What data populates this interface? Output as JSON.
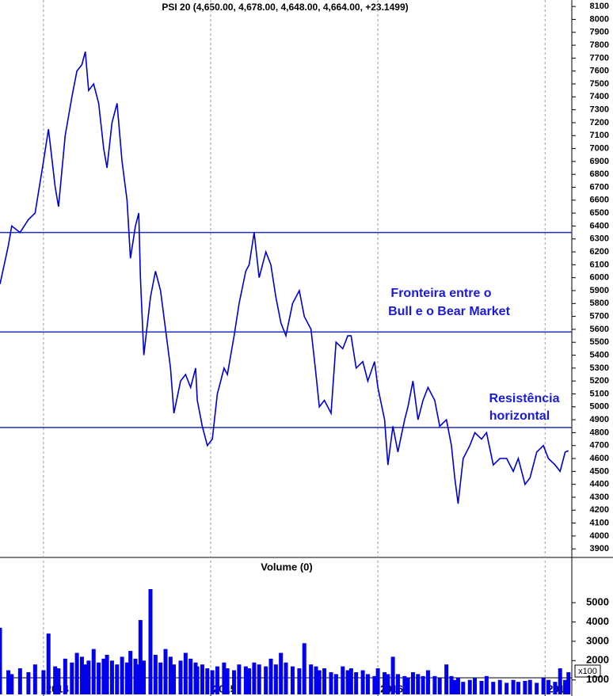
{
  "chart_data": [
    {
      "type": "line",
      "title": "PSI 20 (4,650.00, 4,678.00, 4,648.00, 4,664.00, +23.1499)",
      "x": [
        2013.74,
        2013.79,
        2013.81,
        2013.86,
        2013.91,
        2013.95,
        2014.0,
        2014.03,
        2014.07,
        2014.09,
        2014.13,
        2014.17,
        2014.2,
        2014.23,
        2014.25,
        2014.27,
        2014.3,
        2014.33,
        2014.36,
        2014.38,
        2014.41,
        2014.44,
        2014.47,
        2014.5,
        2014.52,
        2014.55,
        2014.57,
        2014.58,
        2014.6,
        2014.64,
        2014.67,
        2014.7,
        2014.73,
        2014.76,
        2014.78,
        2014.82,
        2014.85,
        2014.88,
        2014.91,
        2014.92,
        2014.95,
        2014.98,
        2015.01,
        2015.04,
        2015.08,
        2015.1,
        2015.14,
        2015.17,
        2015.21,
        2015.23,
        2015.26,
        2015.29,
        2015.33,
        2015.36,
        2015.39,
        2015.42,
        2015.45,
        2015.49,
        2015.53,
        2015.56,
        2015.6,
        2015.63,
        2015.65,
        2015.68,
        2015.72,
        2015.75,
        2015.79,
        2015.82,
        2015.84,
        2015.87,
        2015.91,
        2015.94,
        2015.98,
        2016.0,
        2016.04,
        2016.06,
        2016.09,
        2016.12,
        2016.16,
        2016.18,
        2016.21,
        2016.24,
        2016.27,
        2016.3,
        2016.34,
        2016.37,
        2016.41,
        2016.44,
        2016.46,
        2016.48,
        2016.51,
        2016.55,
        2016.58,
        2016.62,
        2016.65,
        2016.69,
        2016.73,
        2016.77,
        2016.81,
        2016.84,
        2016.88,
        2016.91,
        2016.95,
        2016.99,
        2017.02,
        2017.06,
        2017.09,
        2017.12,
        2017.14
      ],
      "values": [
        5950,
        6250,
        6400,
        6350,
        6450,
        6500,
        6900,
        7150,
        6700,
        6550,
        7100,
        7400,
        7600,
        7650,
        7750,
        7450,
        7500,
        7350,
        7000,
        6850,
        7200,
        7350,
        6900,
        6600,
        6150,
        6400,
        6500,
        6000,
        5400,
        5850,
        6050,
        5900,
        5600,
        5300,
        4950,
        5200,
        5250,
        5150,
        5300,
        5050,
        4850,
        4700,
        4750,
        5100,
        5300,
        5250,
        5550,
        5800,
        6050,
        6100,
        6350,
        6000,
        6200,
        6100,
        5850,
        5650,
        5550,
        5800,
        5900,
        5700,
        5600,
        5250,
        5000,
        5050,
        4950,
        5500,
        5450,
        5550,
        5550,
        5300,
        5350,
        5200,
        5350,
        5150,
        4900,
        4550,
        4850,
        4650,
        4900,
        5000,
        5200,
        4900,
        5050,
        5150,
        5050,
        4850,
        4900,
        4700,
        4450,
        4250,
        4600,
        4700,
        4800,
        4750,
        4800,
        4550,
        4600,
        4600,
        4500,
        4600,
        4400,
        4450,
        4650,
        4700,
        4600,
        4550,
        4500,
        4650,
        4660
      ],
      "color": "#0000cc",
      "xlim": [
        2013.74,
        2017.16
      ],
      "xticks": [
        2014,
        2015,
        2016,
        2017
      ],
      "ylim": [
        3840,
        8150
      ],
      "yticks": [
        3900,
        4000,
        4100,
        4200,
        4300,
        4400,
        4500,
        4600,
        4700,
        4800,
        4900,
        5000,
        5100,
        5200,
        5300,
        5400,
        5500,
        5600,
        5700,
        5800,
        5900,
        6000,
        6100,
        6200,
        6300,
        6400,
        6500,
        6600,
        6700,
        6800,
        6900,
        7000,
        7100,
        7200,
        7300,
        7400,
        7500,
        7600,
        7700,
        7800,
        7900,
        8000,
        8100
      ],
      "hlines": [
        6350,
        5580,
        4840
      ],
      "hline_color": "#1f2fbf",
      "annotations": [
        "Fronteira entre o",
        "Bull e o Bear Market",
        "Resistência",
        "horizontal"
      ]
    },
    {
      "type": "bar",
      "title": "Volume (0)",
      "unit": "x100",
      "color": "#0000ee",
      "ylim": [
        250,
        7300
      ],
      "yticks": [
        1000,
        2000,
        3000,
        4000,
        5000
      ],
      "values": [
        3700,
        1500,
        1300,
        1600,
        1400,
        1800,
        1500,
        3400,
        1700,
        1600,
        2100,
        1900,
        2400,
        2200,
        1800,
        2000,
        2600,
        1900,
        2100,
        2300,
        2000,
        1800,
        2200,
        1900,
        2500,
        2100,
        1800,
        4100,
        2000,
        5700,
        2300,
        1900,
        2600,
        2200,
        1800,
        2000,
        2400,
        2100,
        1900,
        1700,
        1800,
        1600,
        1500,
        1700,
        1900,
        1600,
        1500,
        1800,
        1700,
        1600,
        1900,
        1800,
        1700,
        2100,
        1800,
        2400,
        1900,
        1700,
        1600,
        2900,
        1800,
        1700,
        1500,
        1600,
        1400,
        1300,
        1700,
        1500,
        1600,
        1400,
        1500,
        1300,
        1200,
        1600,
        1400,
        1300,
        2200,
        1300,
        1200,
        1100,
        1400,
        1300,
        1200,
        1500,
        1200,
        1100,
        1800,
        1200,
        1000,
        1100,
        900,
        1000,
        1100,
        950,
        1200,
        900,
        1000,
        850,
        1000,
        900,
        950,
        1000,
        850,
        1100,
        1000,
        900,
        1600,
        1000,
        1400
      ]
    }
  ]
}
